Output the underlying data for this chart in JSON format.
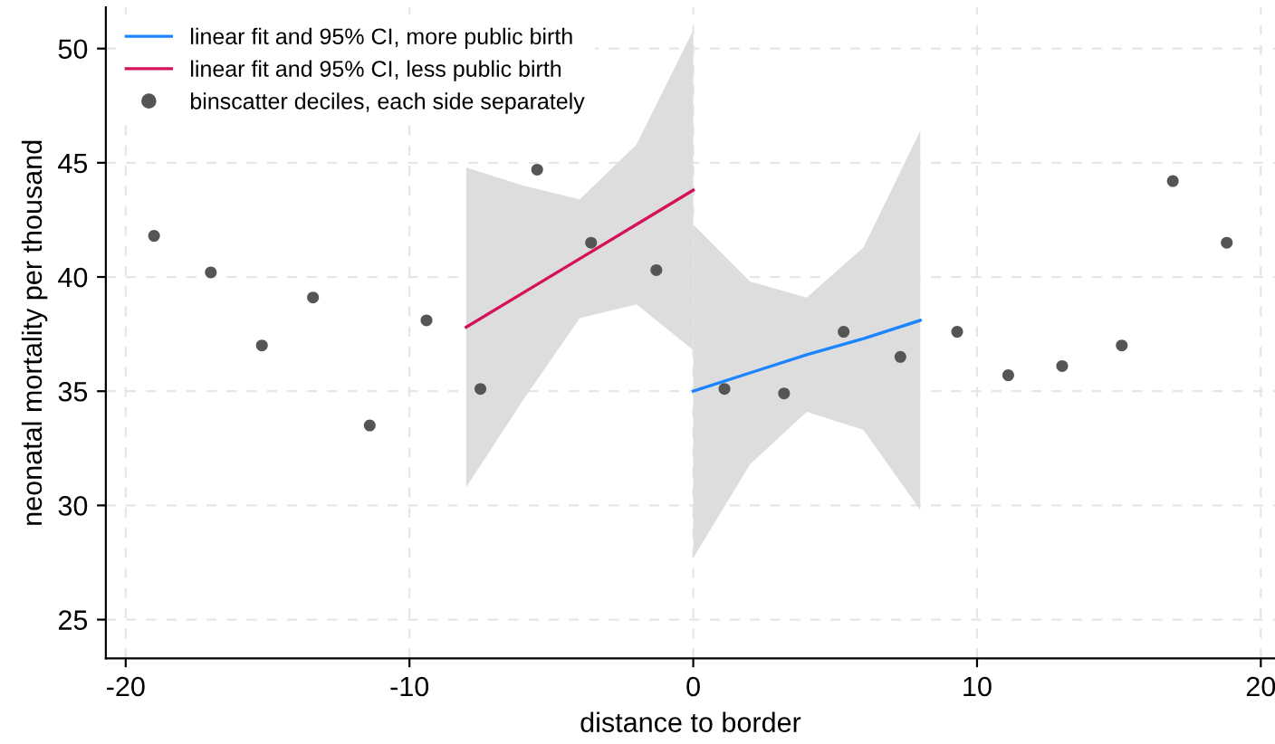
{
  "chart_data": {
    "type": "scatter",
    "xlabel": "distance to border",
    "ylabel": "neonatal mortality per thousand",
    "xlim": [
      -20.7,
      20.5
    ],
    "ylim": [
      23.3,
      51.8
    ],
    "xticks": [
      -20,
      -10,
      0,
      10,
      20
    ],
    "yticks": [
      25,
      30,
      35,
      40,
      45,
      50
    ],
    "grid": true,
    "legend": "top left",
    "series": [
      {
        "name": "linear fit and 95% CI, more public birth",
        "type": "line",
        "color": "#1a85ff",
        "x": [
          0,
          2,
          4,
          6,
          8
        ],
        "values": [
          35.0,
          35.8,
          36.6,
          37.3,
          38.1
        ],
        "lower": [
          27.7,
          31.8,
          34.1,
          33.3,
          29.8
        ],
        "upper": [
          42.3,
          39.8,
          39.1,
          41.3,
          46.4
        ]
      },
      {
        "name": "linear fit and 95% CI, less public birth",
        "type": "line",
        "color": "#d41159",
        "x": [
          -8,
          -6,
          -4,
          -2,
          0
        ],
        "values": [
          37.8,
          39.3,
          40.8,
          42.3,
          43.8
        ],
        "lower": [
          30.8,
          34.6,
          38.2,
          38.8,
          36.8
        ],
        "upper": [
          44.8,
          44.0,
          43.4,
          45.8,
          50.8
        ]
      },
      {
        "name": "binscatter deciles, each side separately",
        "marker": "circle",
        "color": "#555555",
        "x": [
          -19.0,
          -17.0,
          -15.2,
          -13.4,
          -11.4,
          -9.4,
          -7.5,
          -5.5,
          -3.6,
          -1.3,
          1.1,
          3.2,
          5.3,
          7.3,
          9.3,
          11.1,
          13.0,
          15.1,
          16.9,
          18.8
        ],
        "values": [
          41.8,
          40.2,
          37.0,
          39.1,
          33.5,
          38.1,
          35.1,
          44.7,
          41.5,
          40.3,
          35.1,
          34.9,
          37.6,
          36.5,
          37.6,
          35.7,
          36.1,
          37.0,
          44.2,
          41.5
        ]
      }
    ]
  }
}
